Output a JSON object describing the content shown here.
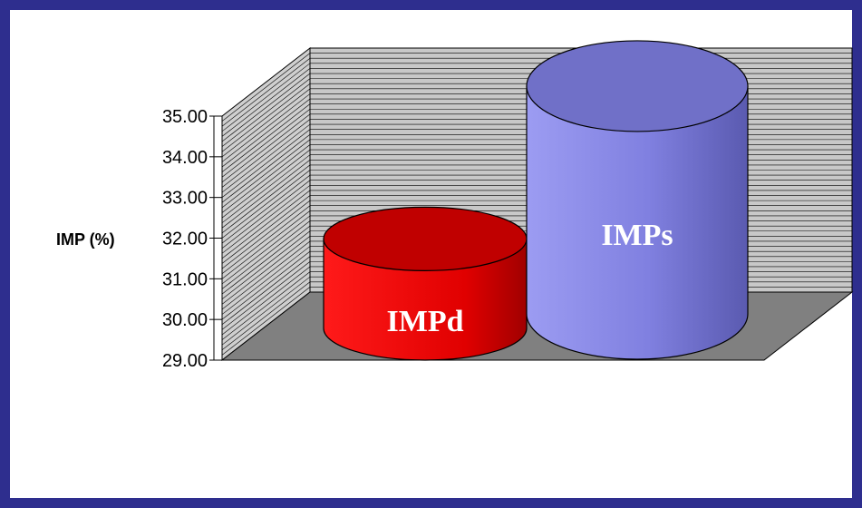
{
  "chart_data": {
    "type": "bar",
    "style": "3d-cylinder",
    "categories": [
      "IMPd",
      "IMPs"
    ],
    "values": [
      31.2,
      34.6
    ],
    "title": "",
    "xlabel": "",
    "ylabel": "IMP (%)",
    "ylim": [
      29,
      35
    ],
    "yticks": [
      "29.00",
      "30.00",
      "31.00",
      "32.00",
      "33.00",
      "34.00",
      "35.00"
    ],
    "grid": true,
    "legend": "none",
    "colors": {
      "IMPd": "#e00000",
      "IMPs": "#8c8ce8",
      "frame_border": "#2e2e8e",
      "wall": "#c8c8c8",
      "floor": "#808080"
    }
  }
}
